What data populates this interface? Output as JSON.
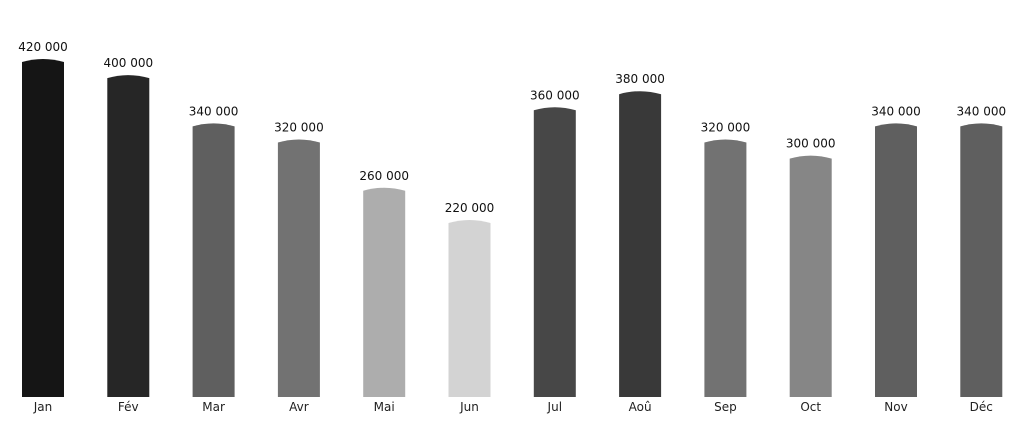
{
  "chart_data": {
    "type": "bar",
    "title": "",
    "xlabel": "",
    "ylabel": "",
    "ylim": [
      0,
      420000
    ],
    "grid": false,
    "legend": "none",
    "categories": [
      "Jan",
      "Fév",
      "Mar",
      "Avr",
      "Mai",
      "Jun",
      "Jul",
      "Aoû",
      "Sep",
      "Oct",
      "Nov",
      "Déc"
    ],
    "values": [
      420000,
      400000,
      340000,
      320000,
      260000,
      220000,
      360000,
      380000,
      320000,
      300000,
      340000,
      340000
    ],
    "value_labels": [
      "420 000",
      "400 000",
      "340 000",
      "320 000",
      "260 000",
      "220 000",
      "360 000",
      "380 000",
      "320 000",
      "300 000",
      "340 000",
      "340 000"
    ],
    "colors": [
      "#151515",
      "#262626",
      "#5f5f5f",
      "#727272",
      "#adadad",
      "#d3d3d3",
      "#474747",
      "#393939",
      "#727272",
      "#868686",
      "#5f5f5f",
      "#5f5f5f"
    ]
  }
}
